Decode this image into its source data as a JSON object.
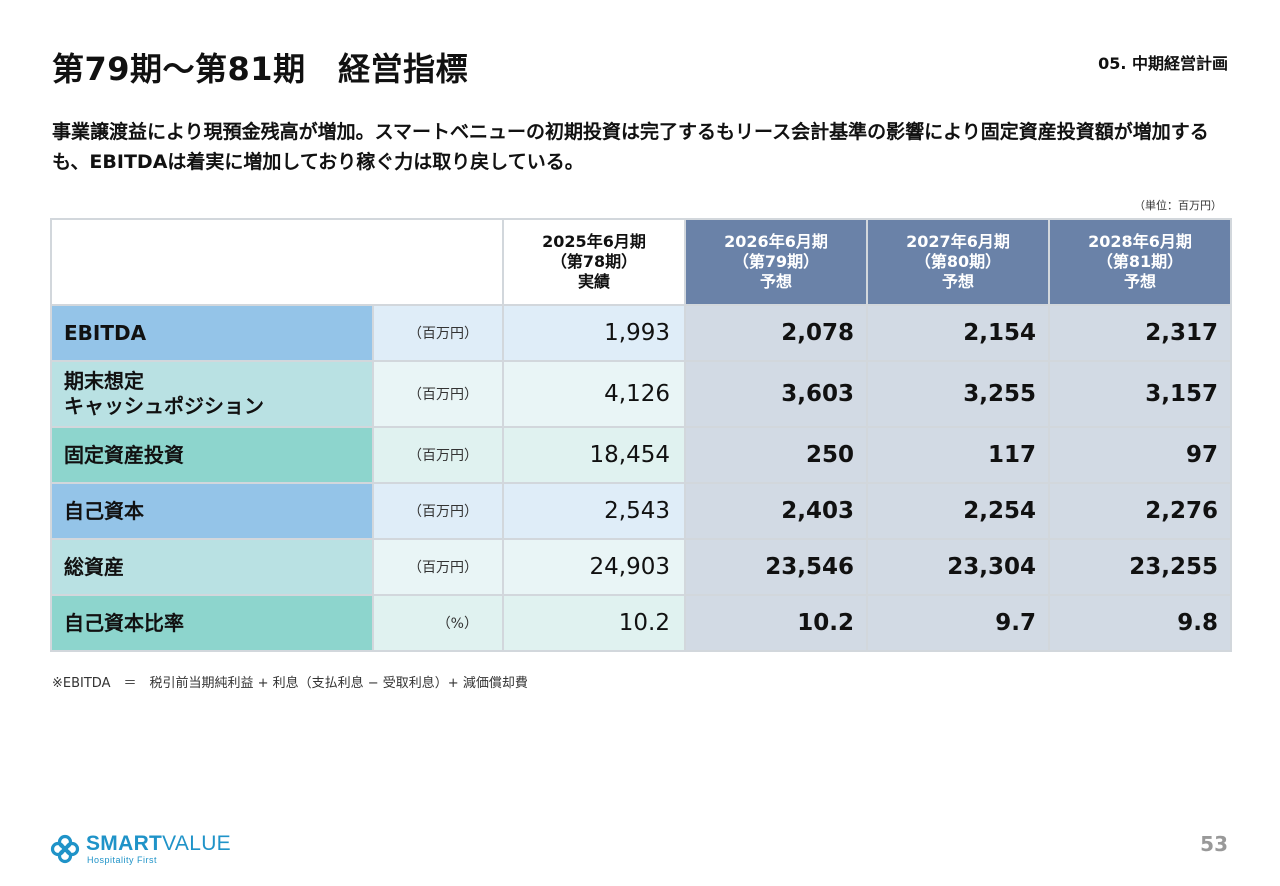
{
  "page": {
    "title": "第79期～第81期　経営指標",
    "section": "05. 中期経営計画",
    "lead": "事業譲渡益により現預金残高が増加。スマートベニューの初期投資は完了するもリース会計基準の影響により固定資産投資額が増加するも、EBITDAは着実に増加しており稼ぐ力は取り戻している。",
    "unit_note": "（単位：百万円）",
    "footnote": "※EBITDA　＝　税引前当期純利益 + 利息（支払利息 − 受取利息）+ 減価償却費",
    "page_number": "53"
  },
  "table": {
    "columns": [
      {
        "line1": "2025年6月期",
        "line2": "（第78期）",
        "line3": "実績",
        "kind": "actual"
      },
      {
        "line1": "2026年6月期",
        "line2": "（第79期）",
        "line3": "予想",
        "kind": "forecast"
      },
      {
        "line1": "2027年6月期",
        "line2": "（第80期）",
        "line3": "予想",
        "kind": "forecast"
      },
      {
        "line1": "2028年6月期",
        "line2": "（第81期）",
        "line3": "予想",
        "kind": "forecast"
      }
    ],
    "rows": [
      {
        "label": "EBITDA",
        "label2": "",
        "unit": "（百万円）",
        "values": [
          "1,993",
          "2,078",
          "2,154",
          "2,317"
        ]
      },
      {
        "label": "期末想定",
        "label2": "キャッシュポジション",
        "unit": "（百万円）",
        "values": [
          "4,126",
          "3,603",
          "3,255",
          "3,157"
        ]
      },
      {
        "label": "固定資産投資",
        "label2": "",
        "unit": "（百万円）",
        "values": [
          "18,454",
          "250",
          "117",
          "97"
        ]
      },
      {
        "label": "自己資本",
        "label2": "",
        "unit": "（百万円）",
        "values": [
          "2,543",
          "2,403",
          "2,254",
          "2,276"
        ]
      },
      {
        "label": "総資産",
        "label2": "",
        "unit": "（百万円）",
        "values": [
          "24,903",
          "23,546",
          "23,304",
          "23,255"
        ]
      },
      {
        "label": "自己資本比率",
        "label2": "",
        "unit": "（%）",
        "values": [
          "10.2",
          "10.2",
          "9.7",
          "9.8"
        ]
      }
    ]
  },
  "logo": {
    "name_bold": "SMART",
    "name_light": "VALUE",
    "tagline": "Hospitality First",
    "color": "#1f93c8"
  },
  "colors": {
    "forecast_header": "#6a82a8",
    "forecast_cell": "#d2dae4",
    "label_blue": "#94c4e8",
    "label_cyan": "#b9e1e3",
    "label_teal": "#8dd5cd"
  }
}
